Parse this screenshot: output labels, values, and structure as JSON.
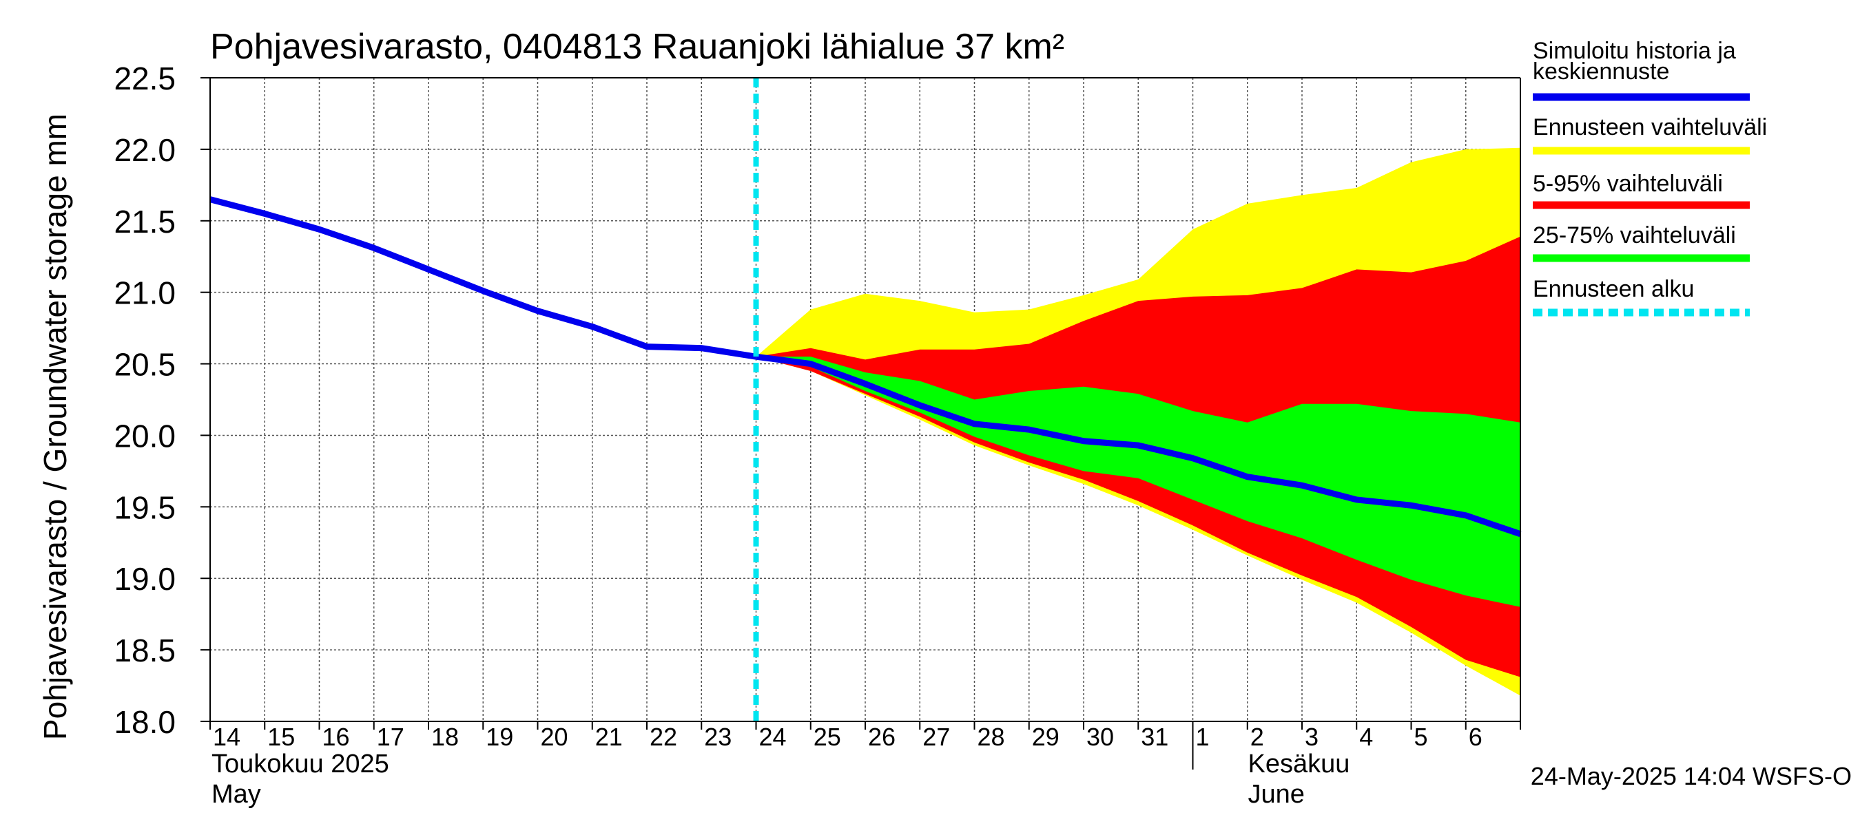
{
  "chart_data": {
    "type": "area",
    "title": "Pohjavesivarasto, 0404813 Rauanjoki lähialue 37 km²",
    "ylabel": "Pohjavesivarasto / Groundwater storage   mm",
    "ylim": [
      18.0,
      22.5
    ],
    "yticks": [
      "18.0",
      "18.5",
      "19.0",
      "19.5",
      "20.0",
      "20.5",
      "21.0",
      "21.5",
      "22.0",
      "22.5"
    ],
    "grid": true,
    "x_start": "2025-05-14",
    "x_end": "2025-06-07",
    "xtick_labels": [
      "14",
      "15",
      "16",
      "17",
      "18",
      "19",
      "20",
      "21",
      "22",
      "23",
      "24",
      "25",
      "26",
      "27",
      "28",
      "29",
      "30",
      "31",
      "1",
      "2",
      "3",
      "4",
      "5",
      "6"
    ],
    "month_labels": [
      {
        "text": "Toukokuu  2025",
        "sub": "May"
      },
      {
        "text": "Kesäkuu",
        "sub": "June"
      }
    ],
    "forecast_start": "2025-05-24",
    "history": {
      "name": "Simuloitu historia ja keskiennuste",
      "color": "#0000ee",
      "x": [
        "2025-05-14",
        "2025-05-15",
        "2025-05-16",
        "2025-05-17",
        "2025-05-18",
        "2025-05-19",
        "2025-05-20",
        "2025-05-21",
        "2025-05-22",
        "2025-05-23",
        "2025-05-24"
      ],
      "y": [
        21.65,
        21.55,
        21.44,
        21.31,
        21.16,
        21.01,
        20.87,
        20.76,
        20.62,
        20.61,
        20.55
      ]
    },
    "forecast_x": [
      "2025-05-24",
      "2025-05-25",
      "2025-05-26",
      "2025-05-27",
      "2025-05-28",
      "2025-05-29",
      "2025-05-30",
      "2025-05-31",
      "2025-06-01",
      "2025-06-02",
      "2025-06-03",
      "2025-06-04",
      "2025-06-05",
      "2025-06-06",
      "2025-06-07"
    ],
    "bands": [
      {
        "name": "Ennusteen vaihteluväli",
        "color": "#ffff00",
        "upper": [
          20.55,
          20.88,
          20.99,
          20.94,
          20.86,
          20.88,
          20.98,
          21.09,
          21.44,
          21.62,
          21.68,
          21.73,
          21.91,
          22.0,
          22.01
        ],
        "lower": [
          20.55,
          20.45,
          20.28,
          20.11,
          19.93,
          19.79,
          19.66,
          19.51,
          19.34,
          19.16,
          18.99,
          18.83,
          18.62,
          18.39,
          18.18
        ]
      },
      {
        "name": "5-95% vaihteluväli",
        "color": "#ff0000",
        "upper": [
          20.55,
          20.61,
          20.53,
          20.6,
          20.6,
          20.64,
          20.8,
          20.94,
          20.97,
          20.98,
          21.03,
          21.16,
          21.14,
          21.22,
          21.39
        ],
        "lower": [
          20.55,
          20.45,
          20.29,
          20.13,
          19.95,
          19.81,
          19.69,
          19.54,
          19.37,
          19.18,
          19.02,
          18.87,
          18.66,
          18.43,
          18.31
        ]
      },
      {
        "name": "25-75% vaihteluväli",
        "color": "#00ff00",
        "upper": [
          20.55,
          20.55,
          20.44,
          20.38,
          20.25,
          20.31,
          20.34,
          20.29,
          20.17,
          20.09,
          20.22,
          20.22,
          20.17,
          20.15,
          20.09
        ],
        "lower": [
          20.55,
          20.48,
          20.31,
          20.16,
          19.99,
          19.86,
          19.75,
          19.7,
          19.55,
          19.4,
          19.28,
          19.13,
          18.99,
          18.88,
          18.8
        ]
      }
    ],
    "median": {
      "name": "Simuloitu historia ja keskiennuste",
      "color": "#0000ee",
      "y": [
        20.55,
        20.5,
        20.36,
        20.21,
        20.08,
        20.04,
        19.96,
        19.93,
        19.84,
        19.71,
        19.65,
        19.55,
        19.51,
        19.44,
        19.31
      ]
    },
    "legend": [
      {
        "label": "Simuloitu historia ja keskiennuste",
        "color": "#0000ee",
        "style": "solid"
      },
      {
        "label": "Ennusteen vaihteluväli",
        "color": "#ffff00",
        "style": "solid"
      },
      {
        "label": "5-95% vaihteluväli",
        "color": "#ff0000",
        "style": "solid"
      },
      {
        "label": "25-75% vaihteluväli",
        "color": "#00ff00",
        "style": "solid"
      },
      {
        "label": "Ennusteen alku",
        "color": "#00e5f0",
        "style": "dashed"
      }
    ],
    "legend_placement": "right",
    "footer": "24-May-2025 14:04 WSFS-O"
  }
}
